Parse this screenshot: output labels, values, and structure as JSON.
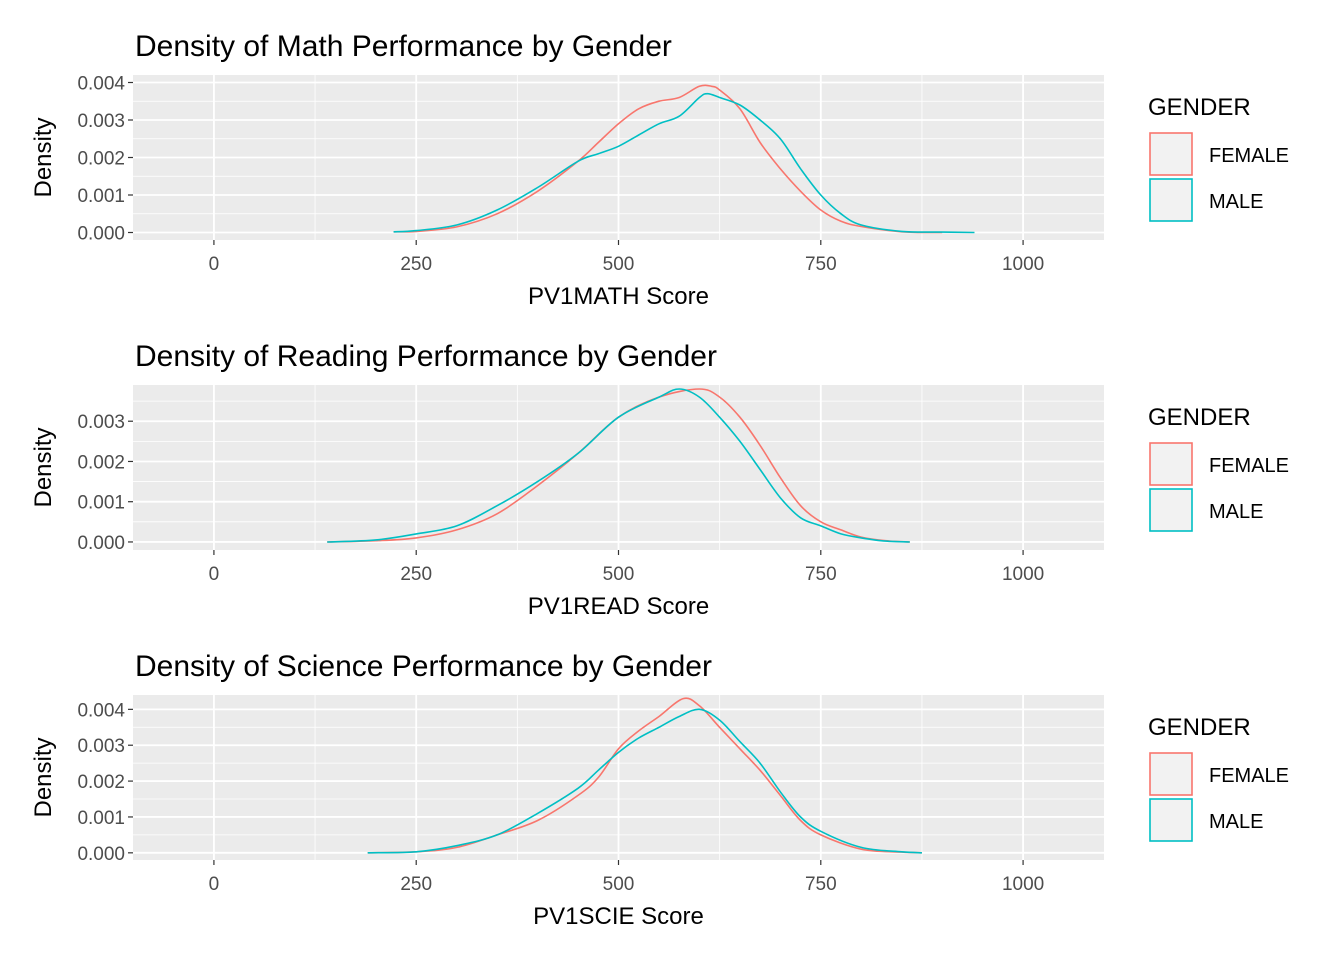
{
  "chart_data": [
    {
      "type": "line",
      "title": "Density of Math Performance by Gender",
      "xlabel": "PV1MATH Score",
      "ylabel": "Density",
      "xlim": [
        -100,
        1100
      ],
      "ylim": [
        -0.0002,
        0.0042
      ],
      "xticks": [
        0,
        250,
        500,
        750,
        1000
      ],
      "xtick_labels": [
        "0",
        "250",
        "500",
        "750",
        "1000"
      ],
      "yticks": [
        0,
        0.001,
        0.002,
        0.003,
        0.004
      ],
      "ytick_labels": [
        "0.000",
        "0.001",
        "0.002",
        "0.003",
        "0.004"
      ],
      "grid": true,
      "legend": {
        "title": "GENDER",
        "position": "right"
      },
      "series": [
        {
          "name": "FEMALE",
          "color": "#F8766D",
          "x": [
            222,
            250,
            300,
            350,
            400,
            450,
            475,
            500,
            525,
            550,
            575,
            600,
            615,
            625,
            650,
            675,
            700,
            725,
            750,
            775,
            800,
            850,
            900
          ],
          "y": [
            2e-05,
            3e-05,
            0.00015,
            0.0005,
            0.0011,
            0.0019,
            0.0024,
            0.0029,
            0.0033,
            0.0035,
            0.0036,
            0.0039,
            0.0039,
            0.0038,
            0.0033,
            0.0024,
            0.0017,
            0.0011,
            0.0006,
            0.0003,
            0.00016,
            2e-05,
            0.0
          ]
        },
        {
          "name": "MALE",
          "color": "#00BFC4",
          "x": [
            222,
            250,
            300,
            350,
            400,
            450,
            475,
            500,
            525,
            550,
            575,
            600,
            610,
            625,
            650,
            675,
            700,
            725,
            750,
            775,
            800,
            850,
            900,
            940
          ],
          "y": [
            2e-05,
            5e-05,
            0.0002,
            0.0006,
            0.0012,
            0.0019,
            0.0021,
            0.0023,
            0.0026,
            0.0029,
            0.0031,
            0.0036,
            0.0037,
            0.0036,
            0.0034,
            0.003,
            0.0025,
            0.0017,
            0.001,
            0.0005,
            0.0002,
            3e-05,
            1e-05,
            0.0
          ]
        }
      ]
    },
    {
      "type": "line",
      "title": "Density of Reading Performance by Gender",
      "xlabel": "PV1READ Score",
      "ylabel": "Density",
      "xlim": [
        -100,
        1100
      ],
      "ylim": [
        -0.0002,
        0.0039
      ],
      "xticks": [
        0,
        250,
        500,
        750,
        1000
      ],
      "xtick_labels": [
        "0",
        "250",
        "500",
        "750",
        "1000"
      ],
      "yticks": [
        0,
        0.001,
        0.002,
        0.003
      ],
      "ytick_labels": [
        "0.000",
        "0.001",
        "0.002",
        "0.003"
      ],
      "grid": true,
      "legend": {
        "title": "GENDER",
        "position": "right"
      },
      "series": [
        {
          "name": "FEMALE",
          "color": "#F8766D",
          "x": [
            140,
            200,
            250,
            300,
            350,
            400,
            450,
            500,
            550,
            600,
            625,
            650,
            675,
            700,
            725,
            750,
            775,
            800,
            830,
            860
          ],
          "y": [
            0.0,
            3e-05,
            0.0001,
            0.0003,
            0.0007,
            0.0014,
            0.0022,
            0.0031,
            0.0036,
            0.0038,
            0.0036,
            0.0031,
            0.0024,
            0.0016,
            0.0009,
            0.0005,
            0.0003,
            0.00012,
            3e-05,
            0.0
          ]
        },
        {
          "name": "MALE",
          "color": "#00BFC4",
          "x": [
            140,
            200,
            250,
            300,
            350,
            400,
            450,
            500,
            550,
            575,
            600,
            625,
            650,
            675,
            700,
            725,
            750,
            775,
            800,
            830,
            860
          ],
          "y": [
            0.0,
            5e-05,
            0.0002,
            0.0004,
            0.0009,
            0.0015,
            0.0022,
            0.0031,
            0.0036,
            0.0038,
            0.0036,
            0.0031,
            0.0025,
            0.0018,
            0.0011,
            0.0006,
            0.0004,
            0.0002,
            0.0001,
            2e-05,
            0.0
          ]
        }
      ]
    },
    {
      "type": "line",
      "title": "Density of Science Performance by Gender",
      "xlabel": "PV1SCIE Score",
      "ylabel": "Density",
      "xlim": [
        -100,
        1100
      ],
      "ylim": [
        -0.0002,
        0.0044
      ],
      "xticks": [
        0,
        250,
        500,
        750,
        1000
      ],
      "xtick_labels": [
        "0",
        "250",
        "500",
        "750",
        "1000"
      ],
      "yticks": [
        0,
        0.001,
        0.002,
        0.003,
        0.004
      ],
      "ytick_labels": [
        "0.000",
        "0.001",
        "0.002",
        "0.003",
        "0.004"
      ],
      "grid": true,
      "legend": {
        "title": "GENDER",
        "position": "right"
      },
      "series": [
        {
          "name": "FEMALE",
          "color": "#F8766D",
          "x": [
            190,
            250,
            300,
            350,
            400,
            450,
            475,
            500,
            525,
            550,
            580,
            600,
            625,
            650,
            675,
            700,
            725,
            750,
            800,
            850,
            875
          ],
          "y": [
            0.0,
            3e-05,
            0.00015,
            0.0005,
            0.0009,
            0.0016,
            0.0021,
            0.0029,
            0.0034,
            0.0038,
            0.0043,
            0.0041,
            0.0035,
            0.0029,
            0.0023,
            0.0016,
            0.0009,
            0.0005,
            0.0001,
            2e-05,
            0.0
          ]
        },
        {
          "name": "MALE",
          "color": "#00BFC4",
          "x": [
            190,
            250,
            300,
            350,
            400,
            450,
            475,
            500,
            525,
            550,
            575,
            600,
            625,
            650,
            675,
            700,
            725,
            750,
            800,
            850,
            875
          ],
          "y": [
            0.0,
            3e-05,
            0.0002,
            0.0005,
            0.0011,
            0.0018,
            0.0023,
            0.0028,
            0.0032,
            0.0035,
            0.0038,
            0.004,
            0.0037,
            0.0031,
            0.0025,
            0.0017,
            0.001,
            0.0006,
            0.00015,
            3e-05,
            0.0
          ]
        }
      ]
    }
  ]
}
